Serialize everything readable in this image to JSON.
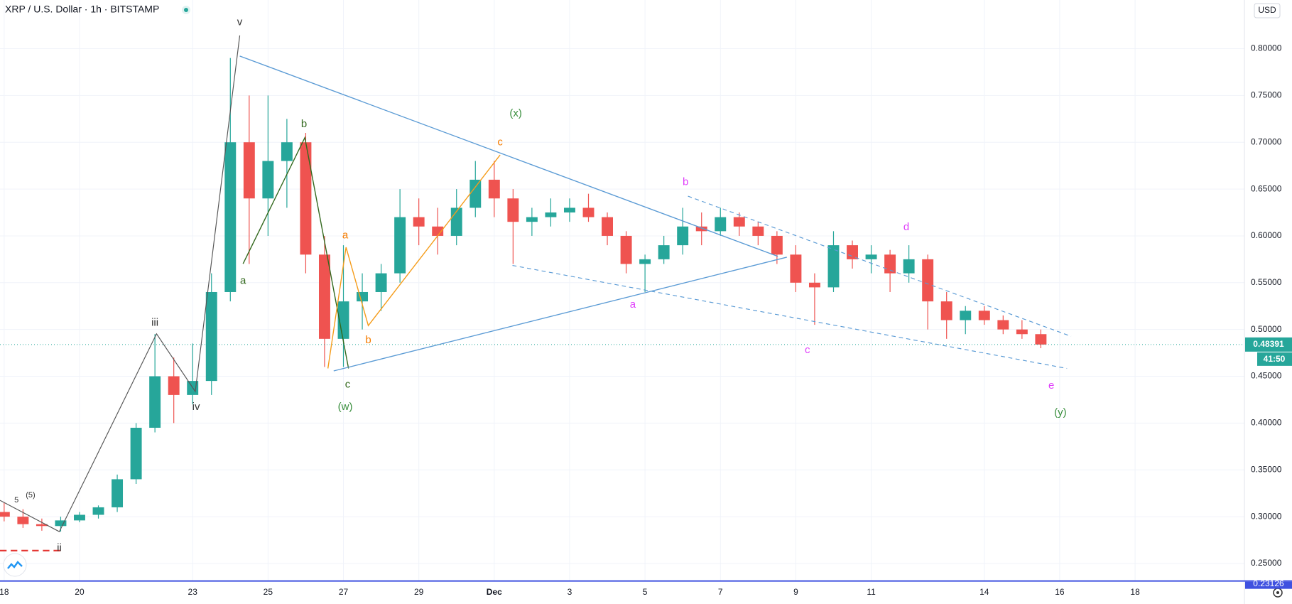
{
  "chart_data": {
    "type": "candlestick",
    "title": "XRP / U.S. Dollar · 1h · BITSTAMP",
    "currency": "USD",
    "x": [
      0,
      0.5,
      1,
      1.5,
      2,
      2.5,
      3,
      3.5,
      4,
      4.5,
      5,
      5.5,
      6,
      6.5,
      7,
      7.5,
      8,
      8.5,
      9,
      9.5,
      10,
      10.5,
      11,
      11.5,
      12,
      12.5,
      13,
      13.5,
      14,
      14.5,
      15,
      15.5,
      16,
      16.5,
      17,
      17.5,
      18,
      18.5,
      19,
      19.5,
      20,
      20.5,
      21,
      21.5,
      22,
      22.5,
      23,
      23.5,
      24,
      24.5,
      25,
      25.5,
      26,
      26.5,
      27,
      27.5
    ],
    "open": [
      0.305,
      0.3,
      0.292,
      0.29,
      0.296,
      0.302,
      0.31,
      0.34,
      0.395,
      0.45,
      0.43,
      0.445,
      0.54,
      0.7,
      0.64,
      0.68,
      0.7,
      0.58,
      0.49,
      0.53,
      0.54,
      0.56,
      0.62,
      0.61,
      0.6,
      0.63,
      0.66,
      0.64,
      0.615,
      0.62,
      0.625,
      0.63,
      0.62,
      0.6,
      0.57,
      0.575,
      0.59,
      0.61,
      0.605,
      0.62,
      0.61,
      0.6,
      0.58,
      0.55,
      0.545,
      0.59,
      0.575,
      0.58,
      0.56,
      0.575,
      0.53,
      0.51,
      0.52,
      0.51,
      0.5,
      0.495
    ],
    "high": [
      0.315,
      0.308,
      0.298,
      0.3,
      0.305,
      0.312,
      0.345,
      0.4,
      0.495,
      0.47,
      0.485,
      0.56,
      0.79,
      0.75,
      0.75,
      0.725,
      0.71,
      0.6,
      0.59,
      0.56,
      0.57,
      0.65,
      0.64,
      0.63,
      0.65,
      0.68,
      0.68,
      0.65,
      0.63,
      0.64,
      0.64,
      0.645,
      0.625,
      0.605,
      0.58,
      0.6,
      0.63,
      0.625,
      0.63,
      0.625,
      0.615,
      0.605,
      0.59,
      0.56,
      0.605,
      0.595,
      0.59,
      0.585,
      0.59,
      0.58,
      0.54,
      0.525,
      0.525,
      0.515,
      0.51,
      0.5
    ],
    "low": [
      0.295,
      0.288,
      0.285,
      0.284,
      0.294,
      0.298,
      0.305,
      0.335,
      0.39,
      0.4,
      0.42,
      0.43,
      0.53,
      0.57,
      0.6,
      0.63,
      0.56,
      0.46,
      0.46,
      0.5,
      0.52,
      0.55,
      0.59,
      0.58,
      0.59,
      0.62,
      0.62,
      0.57,
      0.6,
      0.61,
      0.615,
      0.615,
      0.59,
      0.56,
      0.54,
      0.57,
      0.58,
      0.59,
      0.6,
      0.6,
      0.59,
      0.57,
      0.54,
      0.505,
      0.54,
      0.565,
      0.56,
      0.54,
      0.55,
      0.5,
      0.49,
      0.495,
      0.505,
      0.495,
      0.49,
      0.48
    ],
    "close": [
      0.3,
      0.292,
      0.29,
      0.296,
      0.302,
      0.31,
      0.34,
      0.395,
      0.45,
      0.43,
      0.445,
      0.54,
      0.7,
      0.64,
      0.68,
      0.7,
      0.58,
      0.49,
      0.53,
      0.54,
      0.56,
      0.62,
      0.61,
      0.6,
      0.63,
      0.66,
      0.64,
      0.615,
      0.62,
      0.625,
      0.63,
      0.62,
      0.6,
      0.57,
      0.575,
      0.59,
      0.61,
      0.605,
      0.62,
      0.61,
      0.6,
      0.58,
      0.55,
      0.545,
      0.59,
      0.575,
      0.58,
      0.56,
      0.575,
      0.53,
      0.51,
      0.52,
      0.51,
      0.5,
      0.495,
      0.48391
    ],
    "up_color": "#26a69a",
    "down_color": "#ef5350",
    "grid": true,
    "xlim": [
      -0.11,
      32.9
    ],
    "xticks": [
      {
        "value": 0,
        "label": "18"
      },
      {
        "value": 2,
        "label": "20"
      },
      {
        "value": 5,
        "label": "23"
      },
      {
        "value": 7,
        "label": "25"
      },
      {
        "value": 9,
        "label": "27"
      },
      {
        "value": 11,
        "label": "29"
      },
      {
        "value": 13,
        "label": "Dec"
      },
      {
        "value": 15,
        "label": "3"
      },
      {
        "value": 17,
        "label": "5"
      },
      {
        "value": 19,
        "label": "7"
      },
      {
        "value": 21,
        "label": "9"
      },
      {
        "value": 23,
        "label": "11"
      },
      {
        "value": 26,
        "label": "14"
      },
      {
        "value": 28,
        "label": "16"
      },
      {
        "value": 30,
        "label": "18"
      }
    ],
    "ylim": [
      0.231,
      0.852
    ],
    "yticks": [
      {
        "value": 0.25,
        "label": "0.25000"
      },
      {
        "value": 0.3,
        "label": "0.30000"
      },
      {
        "value": 0.35,
        "label": "0.35000"
      },
      {
        "value": 0.4,
        "label": "0.40000"
      },
      {
        "value": 0.45,
        "label": "0.45000"
      },
      {
        "value": 0.5,
        "label": "0.50000"
      },
      {
        "value": 0.55,
        "label": "0.55000"
      },
      {
        "value": 0.6,
        "label": "0.60000"
      },
      {
        "value": 0.65,
        "label": "0.65000"
      },
      {
        "value": 0.7,
        "label": "0.70000"
      },
      {
        "value": 0.75,
        "label": "0.75000"
      },
      {
        "value": 0.8,
        "label": "0.80000"
      }
    ],
    "last_price": {
      "value": 0.48391,
      "label": "0.48391"
    },
    "countdown": "41:50",
    "baseline": {
      "value": 0.23126,
      "label": "0.23126"
    },
    "annotations": [
      {
        "text": "v",
        "color": "#333333"
      },
      {
        "text": "iii",
        "color": "#333333"
      },
      {
        "text": "iv",
        "color": "#333333"
      },
      {
        "text": "ii",
        "color": "#333333"
      },
      {
        "text": "5",
        "color": "#333333"
      },
      {
        "text": "(5)",
        "color": "#333333"
      },
      {
        "text": "a",
        "color": "#33691e"
      },
      {
        "text": "b",
        "color": "#33691e"
      },
      {
        "text": "c",
        "color": "#33691e"
      },
      {
        "text": "(w)",
        "color": "#388e3c"
      },
      {
        "text": "a",
        "color": "#f57c00"
      },
      {
        "text": "b",
        "color": "#f57c00"
      },
      {
        "text": "c",
        "color": "#f57c00"
      },
      {
        "text": "(x)",
        "color": "#388e3c"
      },
      {
        "text": "b",
        "color": "#e040fb"
      },
      {
        "text": "a",
        "color": "#e040fb"
      },
      {
        "text": "c",
        "color": "#e040fb"
      },
      {
        "text": "d",
        "color": "#e040fb"
      },
      {
        "text": "e",
        "color": "#e040fb"
      },
      {
        "text": "(y)",
        "color": "#388e3c"
      }
    ]
  }
}
